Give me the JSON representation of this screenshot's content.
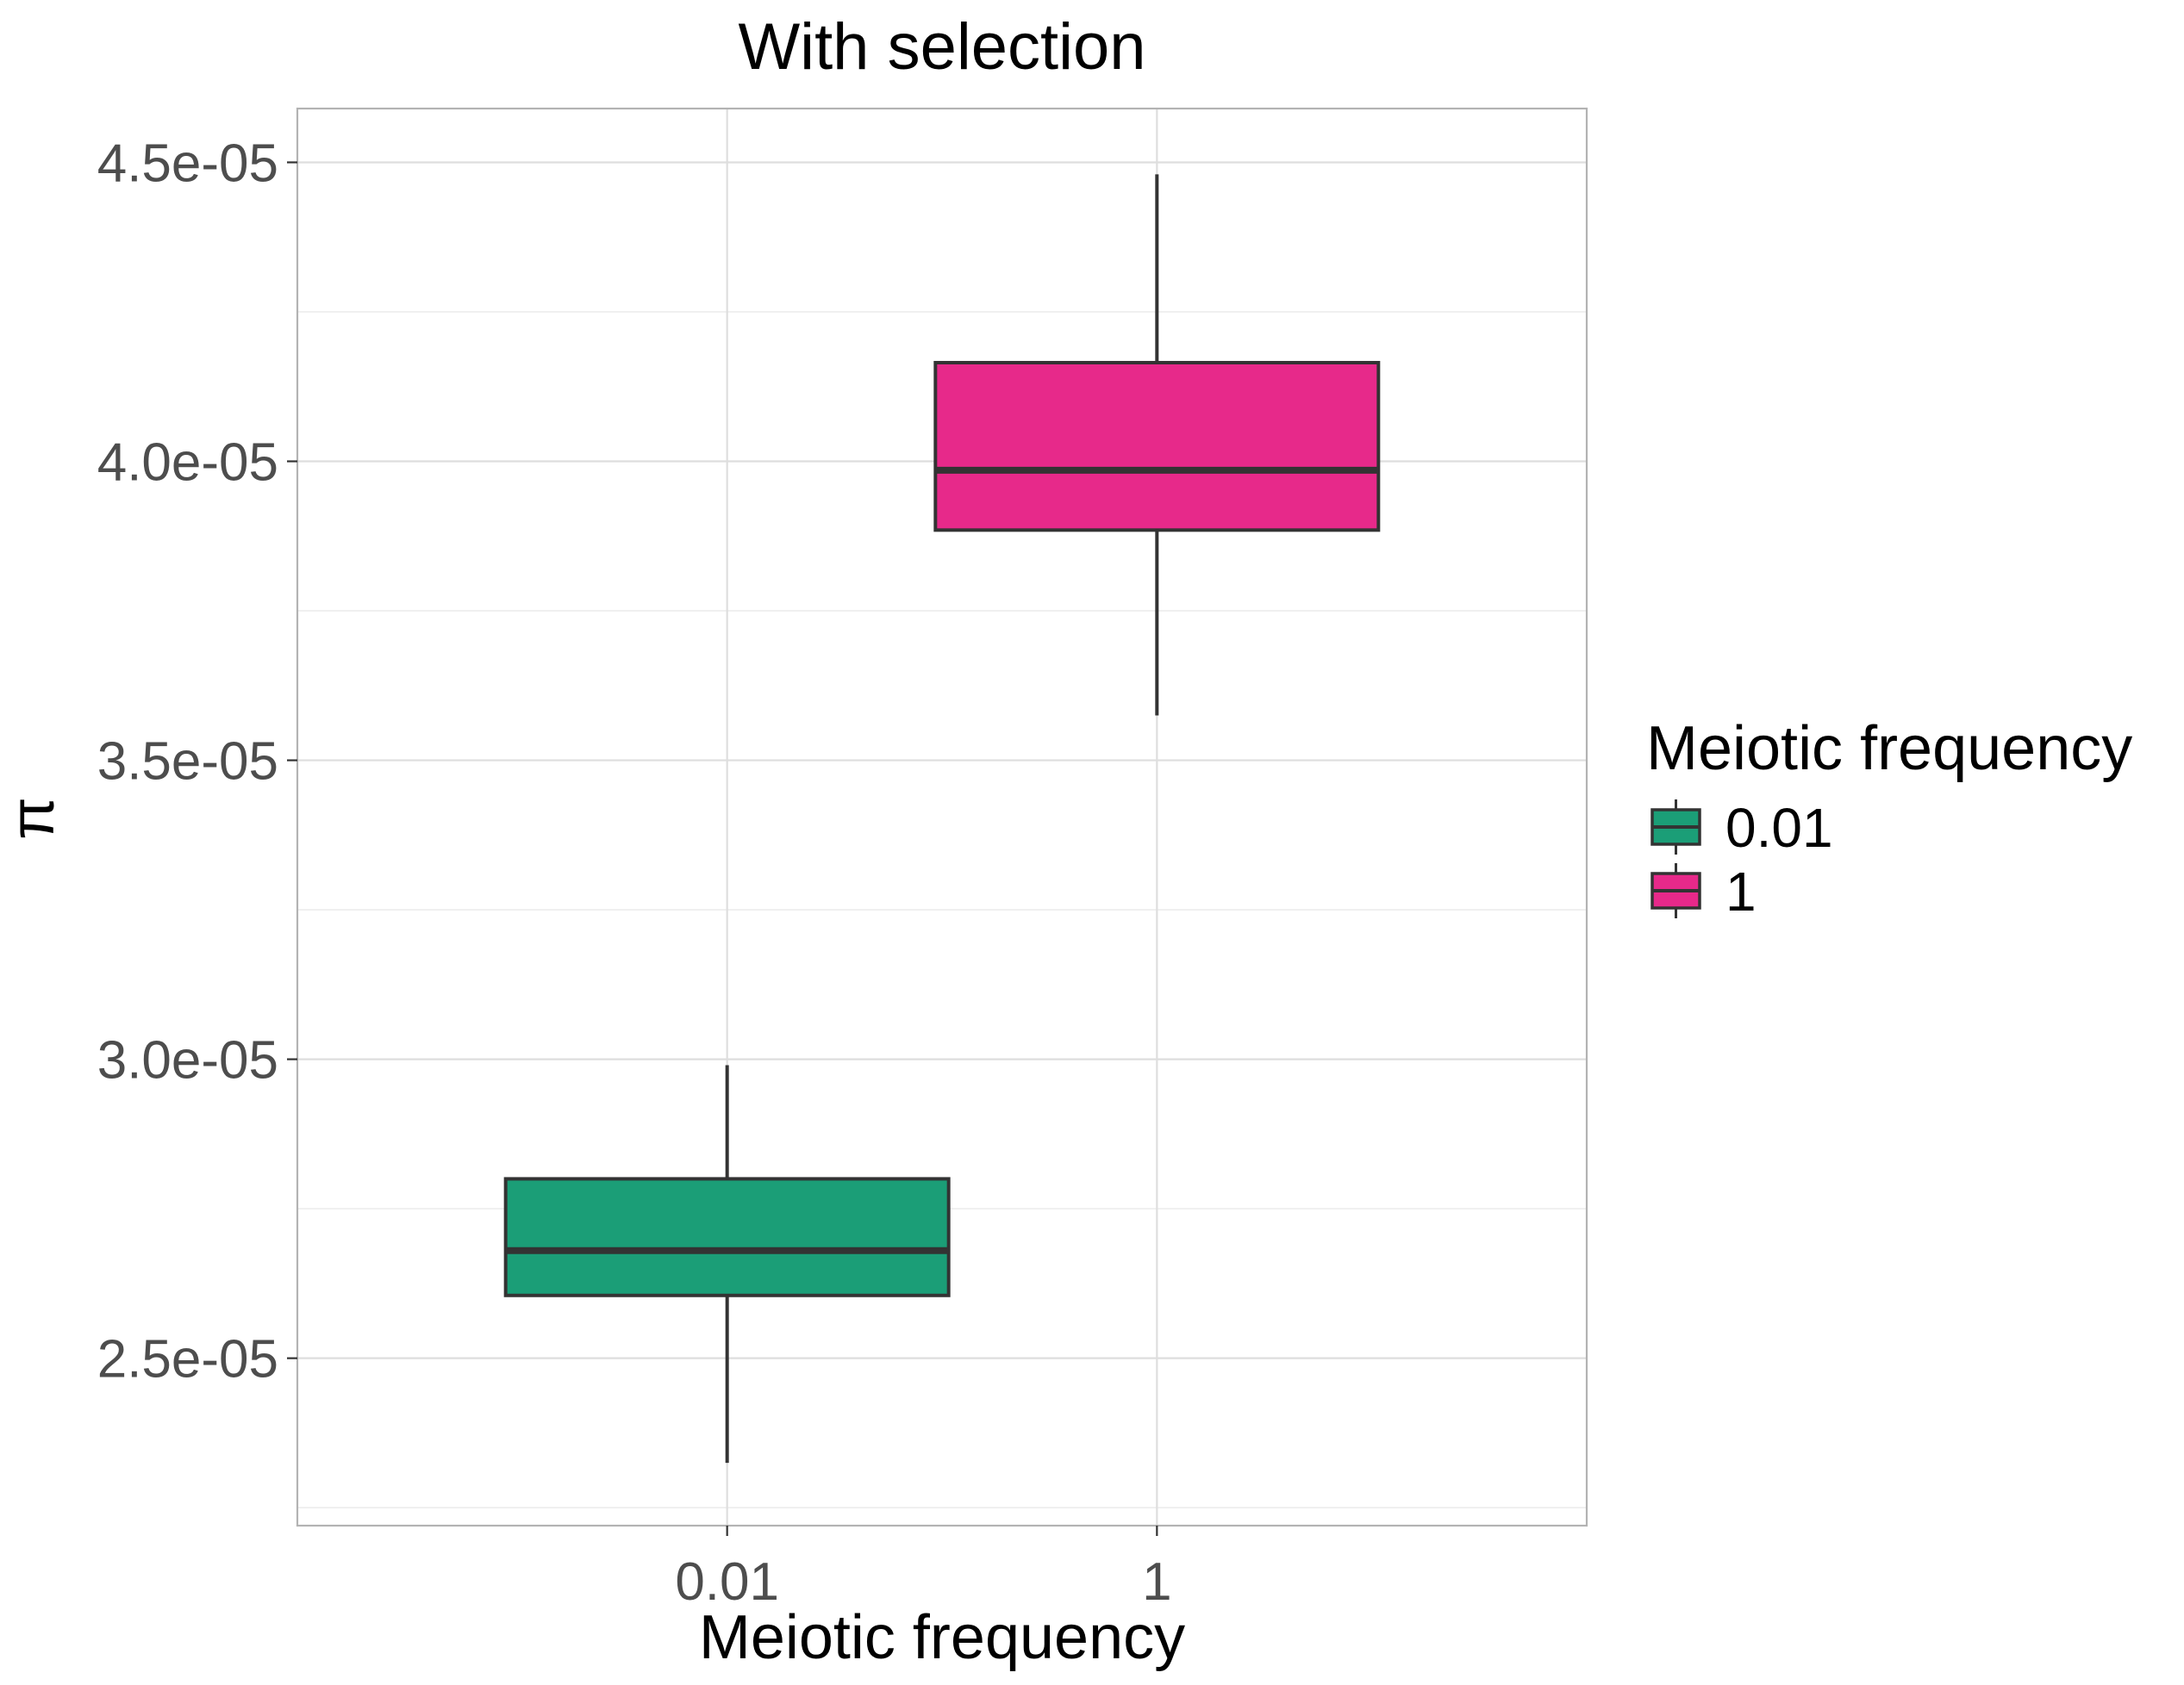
{
  "chart_data": {
    "type": "boxplot",
    "title": "With selection",
    "xlabel": "Meiotic frequency",
    "ylabel": "π",
    "categories": [
      "0.01",
      "1"
    ],
    "y_ticks": [
      {
        "value": 2.5e-05,
        "label": "2.5e-05"
      },
      {
        "value": 3e-05,
        "label": "3.0e-05"
      },
      {
        "value": 3.5e-05,
        "label": "3.5e-05"
      },
      {
        "value": 4e-05,
        "label": "4.0e-05"
      },
      {
        "value": 4.5e-05,
        "label": "4.5e-05"
      }
    ],
    "ylim": [
      2.22e-05,
      4.59e-05
    ],
    "grid": true,
    "legend": {
      "title": "Meiotic frequency",
      "position": "right",
      "entries": [
        {
          "label": "0.01",
          "color": "#1b9e77"
        },
        {
          "label": "1",
          "color": "#e7298a"
        }
      ]
    },
    "boxes": [
      {
        "category": "0.01",
        "color": "#1b9e77",
        "min": 2.325e-05,
        "q1": 2.605e-05,
        "median": 2.68e-05,
        "q3": 2.8e-05,
        "max": 2.99e-05
      },
      {
        "category": "1",
        "color": "#e7298a",
        "min": 3.575e-05,
        "q1": 3.885e-05,
        "median": 3.985e-05,
        "q3": 4.165e-05,
        "max": 4.48e-05
      }
    ]
  }
}
